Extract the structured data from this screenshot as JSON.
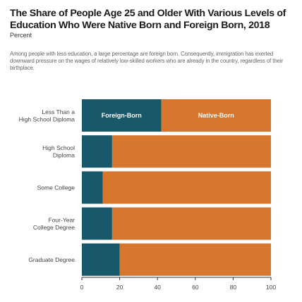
{
  "title": "The Share of People Age 25 and Older With Various Levels of Education Who Were Native Born and Foreign Born, 2018",
  "subtitle": "Percent",
  "note": "Among people with less education, a large percentage are foreign born. Consequently, immigration has exerted downward pressure on the wages of relatively low-skilled workers who are already in the country, regardless of their birthplace.",
  "colors": {
    "foreign_born": "#17586b",
    "native_born": "#d7772f",
    "axis": "#333333",
    "background": "#ffffff"
  },
  "chart_data": {
    "type": "bar",
    "orientation": "horizontal",
    "stacked": true,
    "categories": [
      [
        "Less Than a",
        "High School Diploma"
      ],
      [
        "High School",
        "Diploma"
      ],
      [
        "Some College"
      ],
      [
        "Four-Year",
        "College Degree"
      ],
      [
        "Graduate Degree"
      ]
    ],
    "series": [
      {
        "name": "Foreign-Born",
        "color": "#17586b",
        "values": [
          42,
          16,
          11,
          16,
          20
        ]
      },
      {
        "name": "Native-Born",
        "color": "#d7772f",
        "values": [
          58,
          84,
          89,
          84,
          80
        ]
      }
    ],
    "xlim": [
      0,
      100
    ],
    "xticks": [
      0,
      20,
      40,
      60,
      80,
      100
    ],
    "grid": false,
    "legend": "in-bar labels on first bar"
  }
}
